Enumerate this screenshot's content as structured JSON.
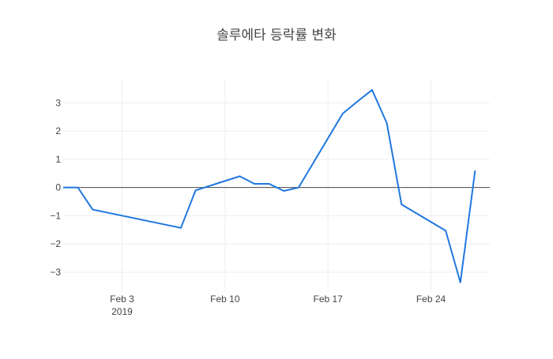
{
  "chart_data": {
    "type": "line",
    "title": "솔루에타 등락률 변화",
    "xlabel": "",
    "ylabel": "",
    "x_ticks": [
      {
        "date": "2019-02-03",
        "label": "Feb 3",
        "sublabel": "2019"
      },
      {
        "date": "2019-02-10",
        "label": "Feb 10",
        "sublabel": ""
      },
      {
        "date": "2019-02-17",
        "label": "Feb 17",
        "sublabel": ""
      },
      {
        "date": "2019-02-24",
        "label": "Feb 24",
        "sublabel": ""
      }
    ],
    "y_ticks": [
      3,
      2,
      1,
      0,
      -1,
      -2,
      -3
    ],
    "y_tick_labels": [
      "3",
      "2",
      "1",
      "0",
      "−1",
      "−2",
      "−3"
    ],
    "xlim": [
      "2019-01-30",
      "2019-02-28"
    ],
    "ylim": [
      -3.7,
      3.85
    ],
    "grid": true,
    "zero_line": true,
    "line_color": "#1f77e0",
    "series": [
      {
        "x": [
          "2019-01-30",
          "2019-01-31",
          "2019-02-01",
          "2019-02-07",
          "2019-02-08",
          "2019-02-11",
          "2019-02-12",
          "2019-02-13",
          "2019-02-14",
          "2019-02-15",
          "2019-02-18",
          "2019-02-19",
          "2019-02-20",
          "2019-02-21",
          "2019-02-22",
          "2019-02-25",
          "2019-02-26",
          "2019-02-27"
        ],
        "y": [
          0,
          0,
          -0.78,
          -1.43,
          -0.1,
          0.4,
          0.13,
          0.13,
          -0.12,
          0,
          2.62,
          3.05,
          3.46,
          2.28,
          -0.6,
          -1.53,
          -3.36,
          0.6
        ]
      }
    ]
  }
}
